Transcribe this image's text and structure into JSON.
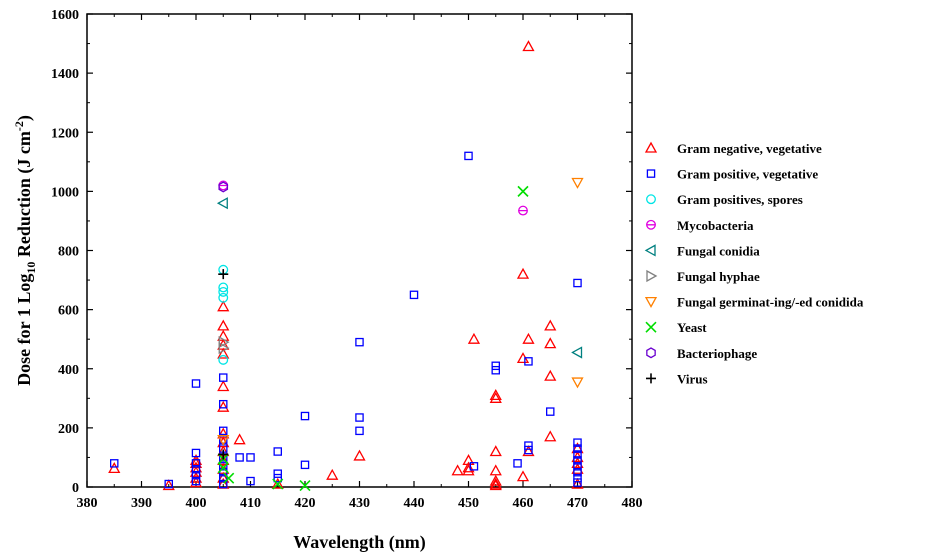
{
  "chart_data": {
    "type": "scatter",
    "title": "",
    "xlabel": "Wavelength (nm)",
    "ylabel": {
      "pre": "Dose for 1 Log",
      "sub1": "10",
      "mid": " Reduction (J cm",
      "sup": "-2",
      "post": ")"
    },
    "xlim": [
      380,
      480
    ],
    "ylim": [
      0,
      1600
    ],
    "xticks": [
      380,
      390,
      400,
      410,
      420,
      430,
      440,
      450,
      460,
      470,
      480
    ],
    "yticks": [
      0,
      200,
      400,
      600,
      800,
      1000,
      1200,
      1400,
      1600
    ],
    "grid": false,
    "legend_position": "right",
    "series": [
      {
        "name": "Gram negative, vegetative",
        "marker": "triangle-up",
        "color": "#ff0000",
        "points": [
          [
            385,
            63
          ],
          [
            395,
            5
          ],
          [
            400,
            90
          ],
          [
            400,
            80
          ],
          [
            400,
            65
          ],
          [
            400,
            50
          ],
          [
            400,
            30
          ],
          [
            400,
            15
          ],
          [
            405,
            610
          ],
          [
            405,
            545
          ],
          [
            405,
            510
          ],
          [
            405,
            480
          ],
          [
            405,
            450
          ],
          [
            405,
            340
          ],
          [
            405,
            270
          ],
          [
            405,
            180
          ],
          [
            405,
            150
          ],
          [
            405,
            120
          ],
          [
            405,
            90
          ],
          [
            405,
            60
          ],
          [
            405,
            30
          ],
          [
            405,
            10
          ],
          [
            408,
            160
          ],
          [
            415,
            10
          ],
          [
            425,
            40
          ],
          [
            430,
            105
          ],
          [
            448,
            55
          ],
          [
            450,
            90
          ],
          [
            450,
            65
          ],
          [
            450,
            55
          ],
          [
            451,
            500
          ],
          [
            455,
            310
          ],
          [
            455,
            300
          ],
          [
            455,
            120
          ],
          [
            455,
            55
          ],
          [
            455,
            20
          ],
          [
            455,
            10
          ],
          [
            455,
            5
          ],
          [
            460,
            720
          ],
          [
            460,
            435
          ],
          [
            460,
            35
          ],
          [
            461,
            1490
          ],
          [
            461,
            500
          ],
          [
            461,
            120
          ],
          [
            465,
            545
          ],
          [
            465,
            485
          ],
          [
            465,
            375
          ],
          [
            465,
            170
          ],
          [
            470,
            130
          ],
          [
            470,
            100
          ],
          [
            470,
            80
          ],
          [
            470,
            60
          ],
          [
            470,
            10
          ]
        ]
      },
      {
        "name": "Gram positive, vegetative",
        "marker": "square",
        "color": "#0000ff",
        "points": [
          [
            385,
            80
          ],
          [
            395,
            10
          ],
          [
            400,
            350
          ],
          [
            400,
            115
          ],
          [
            400,
            80
          ],
          [
            400,
            60
          ],
          [
            400,
            40
          ],
          [
            400,
            20
          ],
          [
            405,
            370
          ],
          [
            405,
            280
          ],
          [
            405,
            190
          ],
          [
            405,
            160
          ],
          [
            405,
            130
          ],
          [
            405,
            100
          ],
          [
            405,
            70
          ],
          [
            405,
            50
          ],
          [
            405,
            30
          ],
          [
            405,
            10
          ],
          [
            408,
            100
          ],
          [
            410,
            100
          ],
          [
            410,
            20
          ],
          [
            415,
            120
          ],
          [
            415,
            45
          ],
          [
            415,
            30
          ],
          [
            420,
            240
          ],
          [
            420,
            75
          ],
          [
            430,
            490
          ],
          [
            430,
            235
          ],
          [
            430,
            190
          ],
          [
            440,
            650
          ],
          [
            450,
            1120
          ],
          [
            451,
            70
          ],
          [
            455,
            410
          ],
          [
            455,
            395
          ],
          [
            459,
            80
          ],
          [
            461,
            425
          ],
          [
            461,
            140
          ],
          [
            461,
            125
          ],
          [
            465,
            255
          ],
          [
            470,
            690
          ],
          [
            470,
            150
          ],
          [
            470,
            130
          ],
          [
            470,
            110
          ],
          [
            470,
            90
          ],
          [
            470,
            70
          ],
          [
            470,
            50
          ],
          [
            470,
            30
          ],
          [
            470,
            15
          ]
        ]
      },
      {
        "name": "Gram positives, spores",
        "marker": "circle",
        "color": "#00e5e5",
        "points": [
          [
            405,
            735
          ],
          [
            405,
            675
          ],
          [
            405,
            660
          ],
          [
            405,
            640
          ],
          [
            405,
            430
          ]
        ]
      },
      {
        "name": "Mycobacteria",
        "marker": "circle-bar",
        "color": "#e000e0",
        "points": [
          [
            405,
            1020
          ],
          [
            460,
            935
          ]
        ]
      },
      {
        "name": "Fungal conidia",
        "marker": "triangle-left",
        "color": "#008080",
        "points": [
          [
            405,
            960
          ],
          [
            470,
            455
          ]
        ]
      },
      {
        "name": "Fungal hyphae",
        "marker": "triangle-right",
        "color": "#808080",
        "points": [
          [
            405,
            490
          ],
          [
            405,
            470
          ]
        ]
      },
      {
        "name": "Fungal germinat-ing/-ed conidida",
        "marker": "triangle-down",
        "color": "#ff8000",
        "points": [
          [
            470,
            1030
          ],
          [
            470,
            355
          ],
          [
            405,
            160
          ]
        ]
      },
      {
        "name": "Yeast",
        "marker": "x",
        "color": "#00dd00",
        "points": [
          [
            405,
            95
          ],
          [
            405,
            65
          ],
          [
            406,
            30
          ],
          [
            415,
            10
          ],
          [
            420,
            5
          ],
          [
            460,
            1000
          ]
        ]
      },
      {
        "name": "Bacteriophage",
        "marker": "hexagon",
        "color": "#6a00d0",
        "points": [
          [
            405,
            1015
          ]
        ]
      },
      {
        "name": "Virus",
        "marker": "plus",
        "color": "#000000",
        "points": [
          [
            405,
            720
          ],
          [
            405,
            110
          ]
        ]
      }
    ]
  }
}
